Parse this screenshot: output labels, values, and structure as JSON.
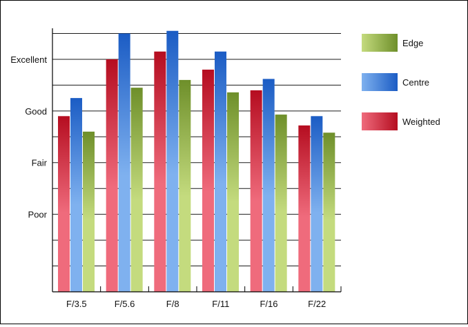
{
  "chart_data": {
    "type": "bar",
    "categories": [
      "F/3.5",
      "F/5.6",
      "F/8",
      "F/11",
      "F/16",
      "F/22"
    ],
    "series": [
      {
        "name": "Weighted",
        "values": [
          3.4,
          4.5,
          4.65,
          4.3,
          3.9,
          3.22
        ],
        "color_top": "#b50d20",
        "color_bottom": "#ef6b7c"
      },
      {
        "name": "Centre",
        "values": [
          3.75,
          5.0,
          5.05,
          4.65,
          4.12,
          3.4
        ],
        "color_top": "#1b5cc4",
        "color_bottom": "#7fb1ef"
      },
      {
        "name": "Edge",
        "values": [
          3.1,
          3.95,
          4.1,
          3.86,
          3.43,
          3.08
        ],
        "color_top": "#6e8f2a",
        "color_bottom": "#c4db7e"
      }
    ],
    "y_tick_labels": [
      {
        "label": "Poor",
        "value": 1.5
      },
      {
        "label": "Fair",
        "value": 2.5
      },
      {
        "label": "Good",
        "value": 3.5
      },
      {
        "label": "Excellent",
        "value": 4.5
      }
    ],
    "legend_order": [
      "Edge",
      "Centre",
      "Weighted"
    ],
    "legend_placement": "right",
    "ylim": [
      0,
      5.1
    ],
    "grid": true,
    "title": "",
    "xlabel": "",
    "ylabel": ""
  }
}
